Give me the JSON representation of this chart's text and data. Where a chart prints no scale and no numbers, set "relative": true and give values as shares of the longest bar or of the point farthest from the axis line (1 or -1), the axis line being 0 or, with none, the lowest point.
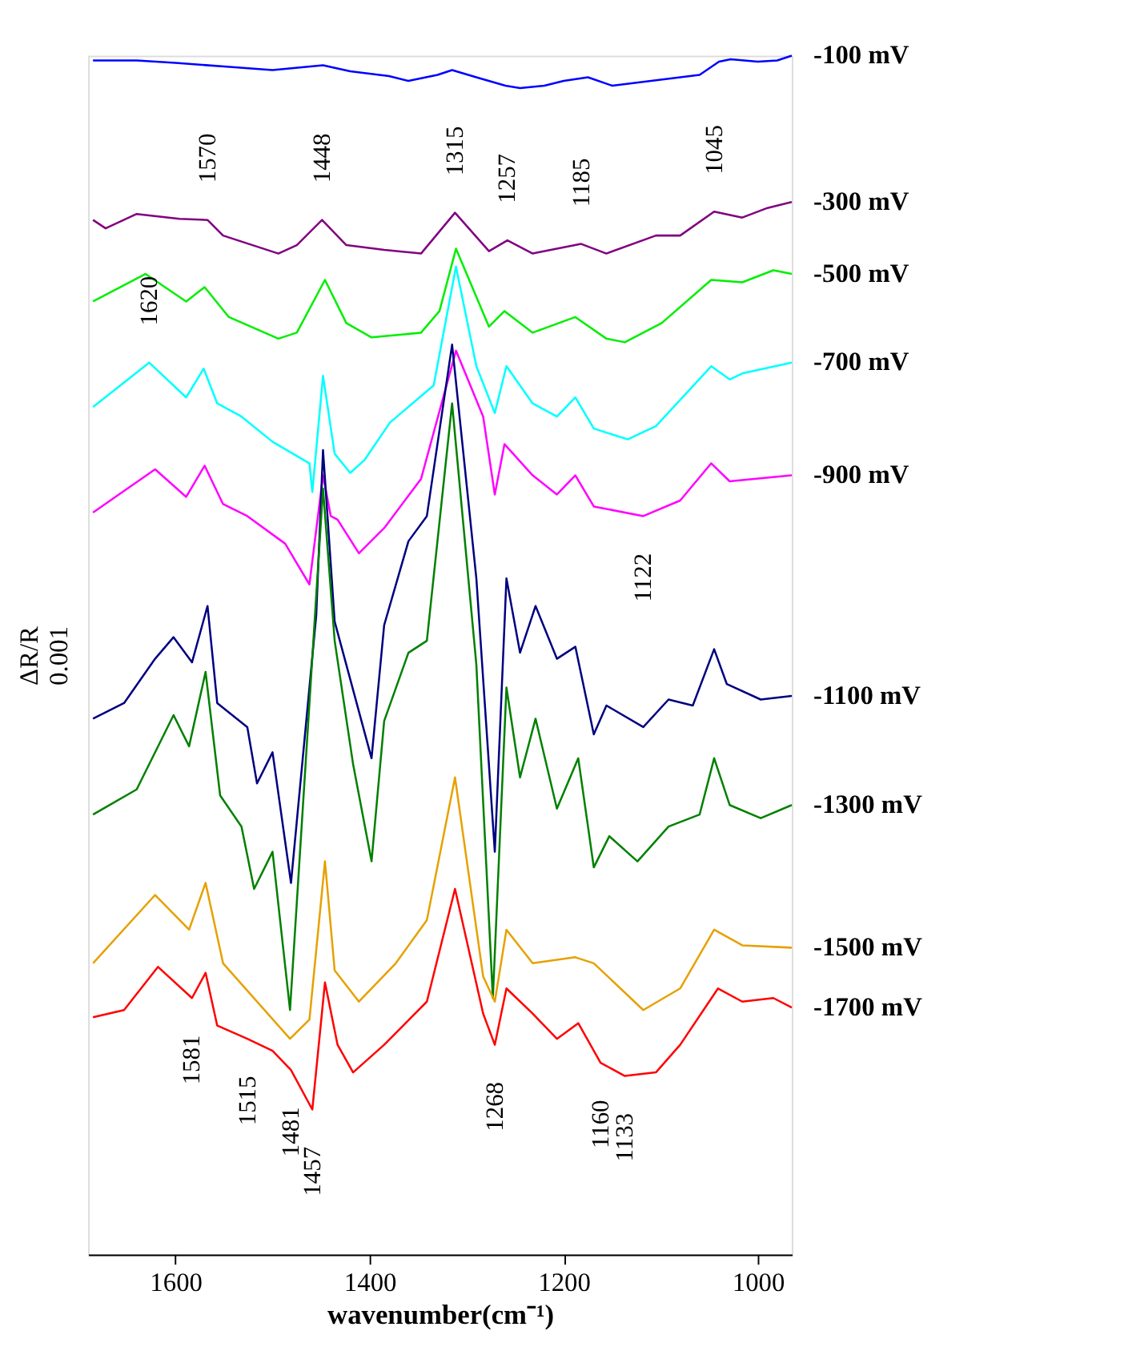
{
  "chart_data": {
    "type": "line",
    "relative": true,
    "xlabel": "wavenumber(cm⁻¹)",
    "ylabel": "ΔR/R\n0.001",
    "xlim": [
      1690,
      965
    ],
    "xticks": [
      1600,
      1400,
      1200,
      1000
    ],
    "grid": false,
    "legend": false,
    "marker": "none",
    "line_style": "solid",
    "series": [
      {
        "name": "-100 mV",
        "color": "#0000ff",
        "x": [
          1685,
          1640,
          1600,
          1550,
          1500,
          1448,
          1420,
          1380,
          1360,
          1330,
          1315,
          1290,
          1260,
          1245,
          1220,
          1200,
          1175,
          1150,
          1120,
          1080,
          1060,
          1040,
          1028,
          1000,
          980,
          965
        ],
        "values": [
          0.996,
          0.996,
          0.994,
          0.991,
          0.988,
          0.992,
          0.987,
          0.983,
          0.979,
          0.984,
          0.988,
          0.982,
          0.975,
          0.973,
          0.975,
          0.979,
          0.982,
          0.975,
          0.978,
          0.982,
          0.984,
          0.995,
          0.997,
          0.995,
          0.996,
          1.0
        ]
      },
      {
        "name": "-300 mV",
        "color": "#800080",
        "x": [
          1685,
          1672,
          1640,
          1596,
          1567,
          1551,
          1494,
          1475,
          1449,
          1424,
          1385,
          1347,
          1312,
          1277,
          1258,
          1232,
          1182,
          1156,
          1105,
          1080,
          1045,
          1016,
          990,
          965
        ],
        "values": [
          0.863,
          0.856,
          0.868,
          0.864,
          0.863,
          0.85,
          0.835,
          0.842,
          0.863,
          0.842,
          0.838,
          0.835,
          0.869,
          0.837,
          0.846,
          0.835,
          0.843,
          0.835,
          0.85,
          0.85,
          0.87,
          0.865,
          0.873,
          0.878
        ]
      },
      {
        "name": "-500 mV",
        "color": "#00ee00",
        "x": [
          1685,
          1631,
          1589,
          1570,
          1545,
          1494,
          1475,
          1446,
          1424,
          1398,
          1347,
          1328,
          1311,
          1277,
          1261,
          1232,
          1188,
          1156,
          1137,
          1099,
          1048,
          1016,
          984,
          965
        ],
        "values": [
          0.795,
          0.818,
          0.795,
          0.807,
          0.782,
          0.764,
          0.769,
          0.813,
          0.777,
          0.765,
          0.769,
          0.787,
          0.839,
          0.774,
          0.787,
          0.769,
          0.782,
          0.764,
          0.761,
          0.777,
          0.813,
          0.811,
          0.821,
          0.818
        ]
      },
      {
        "name": "-700 mV",
        "color": "#00ffff",
        "x": [
          1685,
          1627,
          1589,
          1571,
          1557,
          1532,
          1500,
          1462,
          1459,
          1448,
          1436,
          1420,
          1405,
          1379,
          1334,
          1311,
          1290,
          1271,
          1259,
          1232,
          1207,
          1188,
          1169,
          1134,
          1105,
          1048,
          1029,
          1016,
          965
        ],
        "values": [
          0.707,
          0.744,
          0.715,
          0.739,
          0.71,
          0.699,
          0.678,
          0.66,
          0.636,
          0.733,
          0.668,
          0.652,
          0.663,
          0.694,
          0.725,
          0.824,
          0.741,
          0.702,
          0.741,
          0.71,
          0.699,
          0.715,
          0.689,
          0.68,
          0.691,
          0.741,
          0.73,
          0.735,
          0.744
        ]
      },
      {
        "name": "-900 mV",
        "color": "#ff00ff",
        "x": [
          1685,
          1621,
          1589,
          1570,
          1551,
          1526,
          1487,
          1462,
          1448,
          1440,
          1433,
          1411,
          1385,
          1347,
          1311,
          1283,
          1271,
          1261,
          1232,
          1207,
          1188,
          1169,
          1118,
          1080,
          1048,
          1029,
          965
        ],
        "values": [
          0.619,
          0.655,
          0.632,
          0.658,
          0.626,
          0.616,
          0.593,
          0.559,
          0.65,
          0.616,
          0.613,
          0.585,
          0.606,
          0.647,
          0.754,
          0.699,
          0.634,
          0.676,
          0.65,
          0.634,
          0.65,
          0.624,
          0.616,
          0.629,
          0.66,
          0.645,
          0.65
        ]
      },
      {
        "name": "-1100 mV",
        "color": "#000080",
        "x": [
          1685,
          1653,
          1621,
          1602,
          1583,
          1567,
          1557,
          1526,
          1516,
          1500,
          1481,
          1455,
          1448,
          1436,
          1398,
          1385,
          1360,
          1341,
          1315,
          1290,
          1271,
          1259,
          1245,
          1229,
          1207,
          1188,
          1169,
          1156,
          1118,
          1092,
          1067,
          1045,
          1032,
          997,
          965
        ],
        "values": [
          0.447,
          0.46,
          0.497,
          0.515,
          0.494,
          0.541,
          0.46,
          0.44,
          0.393,
          0.419,
          0.31,
          0.533,
          0.671,
          0.528,
          0.414,
          0.525,
          0.595,
          0.616,
          0.759,
          0.564,
          0.336,
          0.564,
          0.502,
          0.541,
          0.497,
          0.507,
          0.434,
          0.458,
          0.44,
          0.463,
          0.458,
          0.505,
          0.476,
          0.463,
          0.466
        ]
      },
      {
        "name": "-1300 mV",
        "color": "#008000",
        "x": [
          1685,
          1640,
          1602,
          1586,
          1569,
          1554,
          1532,
          1519,
          1500,
          1482,
          1448,
          1436,
          1417,
          1398,
          1385,
          1360,
          1341,
          1315,
          1290,
          1273,
          1259,
          1245,
          1229,
          1207,
          1185,
          1169,
          1153,
          1124,
          1092,
          1060,
          1045,
          1029,
          997,
          965
        ],
        "values": [
          0.367,
          0.388,
          0.45,
          0.424,
          0.486,
          0.383,
          0.357,
          0.305,
          0.336,
          0.204,
          0.639,
          0.512,
          0.409,
          0.328,
          0.445,
          0.502,
          0.512,
          0.71,
          0.492,
          0.214,
          0.473,
          0.398,
          0.447,
          0.372,
          0.414,
          0.323,
          0.349,
          0.328,
          0.357,
          0.367,
          0.414,
          0.375,
          0.364,
          0.375
        ]
      },
      {
        "name": "-1500 mV",
        "color": "#e6a100",
        "x": [
          1685,
          1621,
          1586,
          1569,
          1551,
          1482,
          1462,
          1446,
          1436,
          1411,
          1373,
          1341,
          1312,
          1283,
          1271,
          1259,
          1232,
          1188,
          1169,
          1118,
          1080,
          1045,
          1016,
          965
        ],
        "values": [
          0.243,
          0.3,
          0.271,
          0.31,
          0.243,
          0.18,
          0.196,
          0.328,
          0.237,
          0.211,
          0.243,
          0.279,
          0.398,
          0.232,
          0.211,
          0.271,
          0.243,
          0.248,
          0.243,
          0.204,
          0.222,
          0.271,
          0.258,
          0.256
        ]
      },
      {
        "name": "-1700 mV",
        "color": "#ff0000",
        "x": [
          1685,
          1653,
          1618,
          1583,
          1569,
          1557,
          1526,
          1500,
          1481,
          1459,
          1446,
          1433,
          1417,
          1385,
          1341,
          1312,
          1283,
          1271,
          1259,
          1232,
          1207,
          1185,
          1162,
          1137,
          1105,
          1080,
          1041,
          1016,
          984,
          965
        ],
        "values": [
          0.198,
          0.204,
          0.24,
          0.214,
          0.235,
          0.191,
          0.18,
          0.17,
          0.154,
          0.121,
          0.227,
          0.175,
          0.152,
          0.175,
          0.211,
          0.305,
          0.201,
          0.175,
          0.222,
          0.201,
          0.18,
          0.193,
          0.16,
          0.149,
          0.152,
          0.175,
          0.222,
          0.211,
          0.214,
          0.206
        ]
      }
    ],
    "annotations": [
      {
        "text": "1570",
        "x": 1567,
        "y": 0.863
      },
      {
        "text": "1448",
        "x": 1449,
        "y": 0.863
      },
      {
        "text": "1315",
        "x": 1312,
        "y": 0.869
      },
      {
        "text": "1257",
        "x": 1258,
        "y": 0.846
      },
      {
        "text": "1185",
        "x": 1182,
        "y": 0.843
      },
      {
        "text": "1045",
        "x": 1045,
        "y": 0.87
      },
      {
        "text": "1620",
        "x": 1627,
        "y": 0.744
      },
      {
        "text": "1122",
        "x": 1118,
        "y": 0.616
      },
      {
        "text": "1581",
        "x": 1583,
        "y": 0.214
      },
      {
        "text": "1515",
        "x": 1526,
        "y": 0.18
      },
      {
        "text": "1481",
        "x": 1481,
        "y": 0.154
      },
      {
        "text": "1457",
        "x": 1459,
        "y": 0.121
      },
      {
        "text": "1268",
        "x": 1271,
        "y": 0.175
      },
      {
        "text": "1160",
        "x": 1162,
        "y": 0.16
      },
      {
        "text": "1133",
        "x": 1137,
        "y": 0.149
      }
    ]
  }
}
